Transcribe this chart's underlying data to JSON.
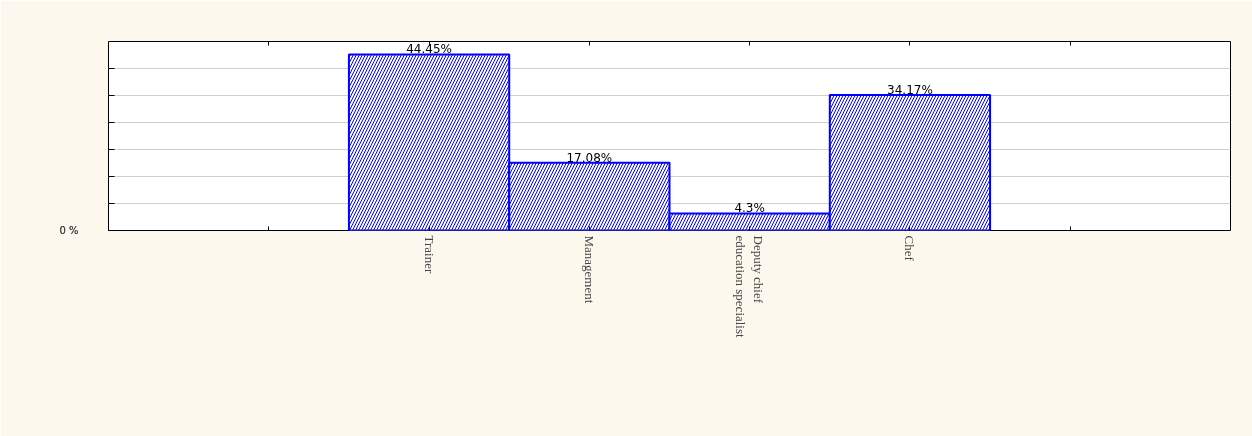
{
  "chart_data": {
    "type": "bar",
    "categories": [
      "Trainer",
      "Management",
      "Deputy chief education specialist",
      "Chef"
    ],
    "values": [
      44.45,
      17.08,
      4.3,
      34.17
    ],
    "value_labels": [
      "44.45%",
      "17.08%",
      "4.3%",
      "34.17%"
    ],
    "color": "#0000ff",
    "ylim": [
      0,
      47.7
    ],
    "annotations": [
      "0 %"
    ],
    "grid": "y"
  }
}
